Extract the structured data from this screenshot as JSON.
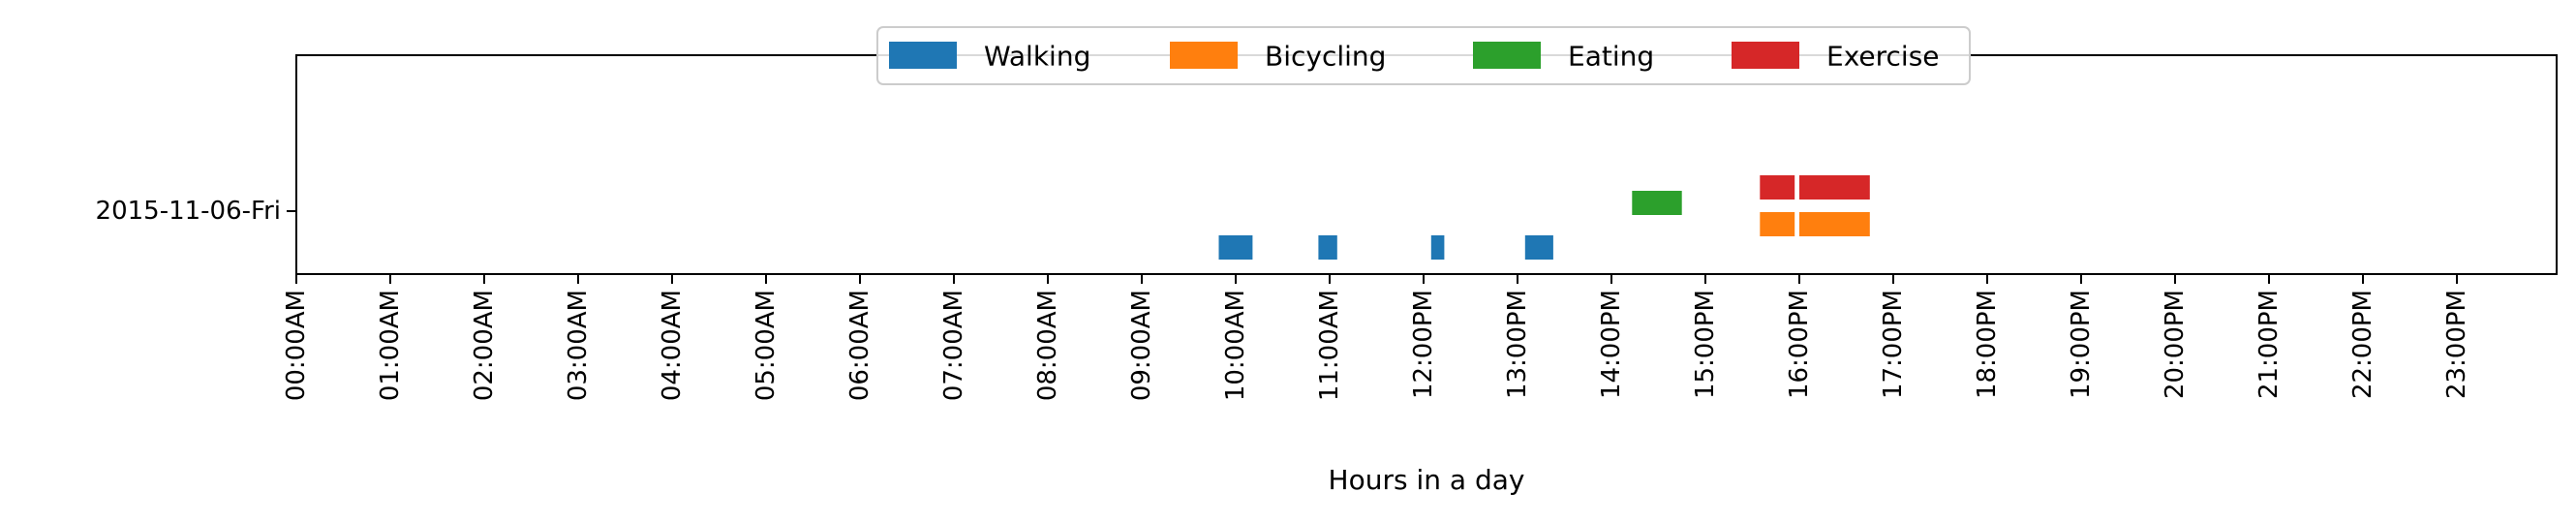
{
  "chart_data": {
    "type": "timeline",
    "xlabel": "Hours in a day",
    "ylabel": "",
    "xlim": [
      0,
      24
    ],
    "row_label": "2015-11-06-Fri",
    "legend_position": "top-center",
    "grid": false,
    "x_ticks": [
      "00:00AM",
      "01:00AM",
      "02:00AM",
      "03:00AM",
      "04:00AM",
      "05:00AM",
      "06:00AM",
      "07:00AM",
      "08:00AM",
      "09:00AM",
      "10:00AM",
      "11:00AM",
      "12:00PM",
      "13:00PM",
      "14:00PM",
      "15:00PM",
      "16:00PM",
      "17:00PM",
      "18:00PM",
      "19:00PM",
      "20:00PM",
      "21:00PM",
      "22:00PM",
      "23:00PM"
    ],
    "series": [
      {
        "name": "Walking",
        "color": "#1f77b4",
        "lane": 0,
        "intervals": [
          [
            9.82,
            10.18
          ],
          [
            10.88,
            11.08
          ],
          [
            12.08,
            12.22
          ],
          [
            13.08,
            13.38
          ]
        ]
      },
      {
        "name": "Bicycling",
        "color": "#ff7f0e",
        "lane": 1,
        "intervals": [
          [
            15.58,
            15.95
          ],
          [
            16.0,
            16.75
          ]
        ]
      },
      {
        "name": "Eating",
        "color": "#2ca02c",
        "lane": 2,
        "intervals": [
          [
            14.22,
            14.75
          ]
        ]
      },
      {
        "name": "Exercise",
        "color": "#d62728",
        "lane": 3,
        "intervals": [
          [
            15.58,
            15.95
          ],
          [
            16.0,
            16.75
          ]
        ]
      }
    ]
  }
}
